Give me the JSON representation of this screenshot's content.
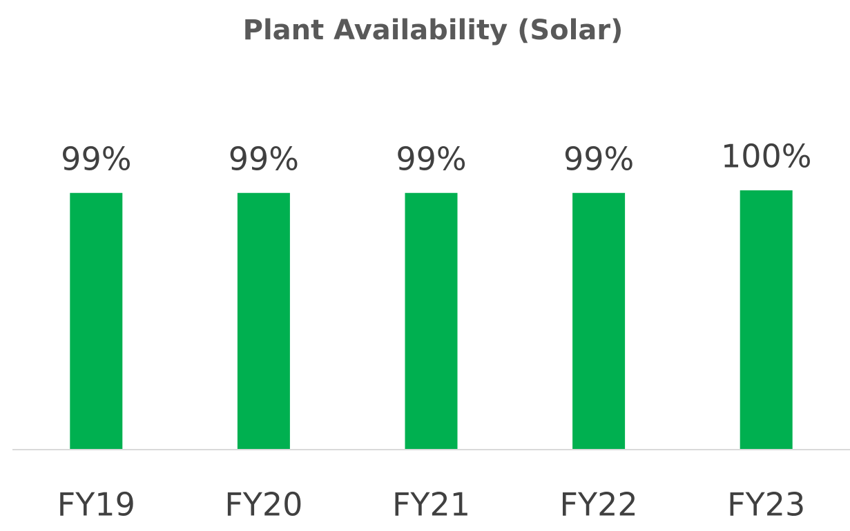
{
  "chart_data": {
    "type": "bar",
    "title": "Plant Availability (Solar)",
    "categories": [
      "FY19",
      "FY20",
      "FY21",
      "FY22",
      "FY23"
    ],
    "values": [
      99,
      99,
      99,
      99,
      100
    ],
    "value_labels": [
      "99%",
      "99%",
      "99%",
      "99%",
      "100%"
    ],
    "color": "#00b050"
  }
}
